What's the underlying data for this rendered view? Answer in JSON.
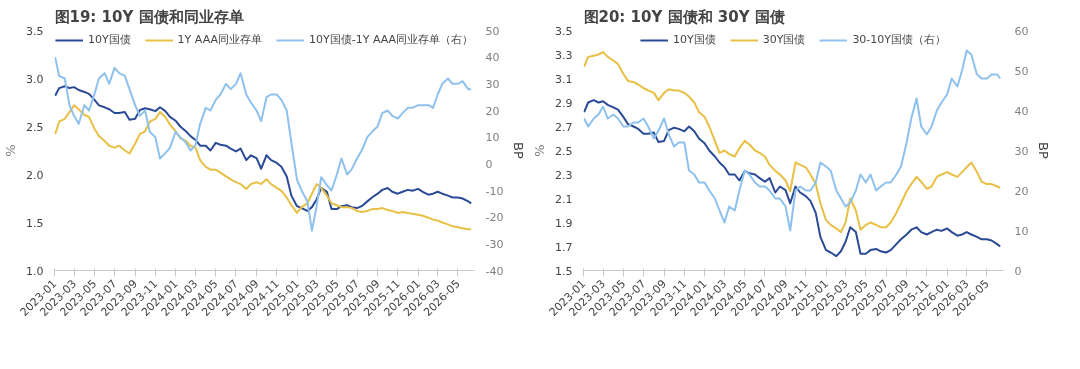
{
  "chart_data": [
    {
      "type": "line",
      "title": "图19: 10Y 国债和同业存单",
      "ylabel": "%",
      "y2label": "BP",
      "legend": "top",
      "grid": false,
      "x": [
        "2023-01-03",
        "2023-01-15",
        "2023-02-01",
        "2023-02-15",
        "2023-03-01",
        "2023-03-15",
        "2023-04-01",
        "2023-04-15",
        "2023-05-01",
        "2023-05-15",
        "2023-06-01",
        "2023-06-15",
        "2023-07-01",
        "2023-07-15",
        "2023-08-01",
        "2023-08-15",
        "2023-09-01",
        "2023-09-15",
        "2023-10-01",
        "2023-10-15",
        "2023-11-01",
        "2023-11-15",
        "2023-12-01",
        "2023-12-15",
        "2024-01-01",
        "2024-01-15",
        "2024-02-01",
        "2024-02-15",
        "2024-03-01",
        "2024-03-15",
        "2024-04-01",
        "2024-04-15",
        "2024-05-01",
        "2024-05-15",
        "2024-06-01",
        "2024-06-15",
        "2024-07-01",
        "2024-07-15",
        "2024-08-01",
        "2024-08-15",
        "2024-09-01",
        "2024-09-15",
        "2024-10-01",
        "2024-10-15",
        "2024-11-01",
        "2024-11-15",
        "2024-12-01",
        "2024-12-15",
        "2025-01-01",
        "2025-01-15",
        "2025-02-01",
        "2025-02-15",
        "2025-03-01",
        "2025-03-15",
        "2025-04-01",
        "2025-04-15",
        "2025-05-01",
        "2025-05-15",
        "2025-06-01",
        "2025-06-15",
        "2025-07-01",
        "2025-07-15",
        "2025-08-01",
        "2025-08-15",
        "2025-09-01",
        "2025-09-15",
        "2025-10-01",
        "2025-10-15",
        "2025-11-01",
        "2025-11-15",
        "2025-12-01",
        "2025-12-15",
        "2026-01-01",
        "2026-01-15",
        "2026-02-01",
        "2026-02-15",
        "2026-03-01",
        "2026-03-15",
        "2026-04-01",
        "2026-04-15",
        "2026-05-01",
        "2026-05-15",
        "2026-06-01",
        "2026-06-10"
      ],
      "xlim": [
        "2023-01-01",
        "2026-06-20"
      ],
      "xticks": [
        "2023-01",
        "2023-03",
        "2023-05",
        "2023-07",
        "2023-09",
        "2023-11",
        "2024-01",
        "2024-03",
        "2024-05",
        "2024-07",
        "2024-09",
        "2024-11",
        "2025-01",
        "2025-03",
        "2025-05",
        "2025-07",
        "2025-09",
        "2025-11",
        "2026-01",
        "2026-03",
        "2026-05"
      ],
      "ylim": [
        1.0,
        3.5
      ],
      "yticks": [
        {
          "value": 1.0,
          "label": "1.0"
        },
        1.5,
        {
          "value": 2.0,
          "label": "2.0"
        },
        2.5,
        {
          "value": 3.0,
          "label": "3.0"
        },
        3.5
      ],
      "y2lim": [
        -40,
        50
      ],
      "y2ticks": [
        -40,
        -30,
        -20,
        -10,
        0,
        10,
        20,
        30,
        40,
        50
      ],
      "series": [
        {
          "name": "10Y国债",
          "color": "#2b4a96",
          "values": [
            2.82,
            2.9,
            2.92,
            2.9,
            2.91,
            2.88,
            2.86,
            2.84,
            2.78,
            2.72,
            2.7,
            2.68,
            2.64,
            2.64,
            2.65,
            2.57,
            2.58,
            2.67,
            2.69,
            2.68,
            2.66,
            2.7,
            2.66,
            2.6,
            2.56,
            2.5,
            2.45,
            2.4,
            2.36,
            2.3,
            2.3,
            2.25,
            2.33,
            2.31,
            2.3,
            2.27,
            2.24,
            2.27,
            2.15,
            2.2,
            2.17,
            2.06,
            2.2,
            2.15,
            2.12,
            2.08,
            1.98,
            1.78,
            1.67,
            1.65,
            1.62,
            1.66,
            1.74,
            1.86,
            1.82,
            1.64,
            1.64,
            1.67,
            1.68,
            1.66,
            1.65,
            1.67,
            1.72,
            1.76,
            1.8,
            1.84,
            1.86,
            1.82,
            1.8,
            1.82,
            1.84,
            1.83,
            1.85,
            1.82,
            1.79,
            1.8,
            1.82,
            1.8,
            1.78,
            1.76,
            1.76,
            1.75,
            1.72,
            1.7
          ]
        },
        {
          "name": "1Y AAA同业存单",
          "color": "#e8c046",
          "values": [
            2.42,
            2.55,
            2.58,
            2.65,
            2.72,
            2.68,
            2.62,
            2.6,
            2.48,
            2.4,
            2.35,
            2.3,
            2.28,
            2.3,
            2.25,
            2.22,
            2.32,
            2.42,
            2.45,
            2.55,
            2.58,
            2.65,
            2.6,
            2.52,
            2.45,
            2.38,
            2.35,
            2.3,
            2.28,
            2.15,
            2.08,
            2.05,
            2.05,
            2.02,
            1.98,
            1.95,
            1.92,
            1.9,
            1.85,
            1.9,
            1.92,
            1.9,
            1.95,
            1.9,
            1.86,
            1.83,
            1.76,
            1.68,
            1.6,
            1.66,
            1.7,
            1.8,
            1.9,
            1.86,
            1.78,
            1.7,
            1.68,
            1.66,
            1.66,
            1.65,
            1.62,
            1.61,
            1.62,
            1.64,
            1.64,
            1.65,
            1.63,
            1.62,
            1.6,
            1.61,
            1.6,
            1.59,
            1.58,
            1.57,
            1.55,
            1.53,
            1.52,
            1.5,
            1.48,
            1.46,
            1.45,
            1.44,
            1.43,
            1.43
          ]
        },
        {
          "name": "10Y国债-1Y AAA同业存单（右）",
          "color": "#8fc1ee",
          "axis": "y2",
          "values": [
            40,
            33,
            32,
            22,
            18,
            15,
            22,
            20,
            26,
            32,
            34,
            30,
            36,
            34,
            33,
            28,
            22,
            18,
            20,
            12,
            10,
            2,
            4,
            6,
            12,
            10,
            8,
            5,
            7,
            15,
            21,
            20,
            24,
            26,
            30,
            28,
            30,
            34,
            26,
            23,
            20,
            16,
            25,
            26,
            26,
            24,
            20,
            8,
            -6,
            -10,
            -14,
            -25,
            -16,
            -5,
            -8,
            -10,
            -4,
            2,
            -4,
            -2,
            2,
            5,
            10,
            12,
            14,
            19,
            20,
            18,
            17,
            19,
            21,
            21,
            22,
            22,
            22,
            21,
            26,
            30,
            32,
            30,
            30,
            31,
            28,
            28
          ]
        }
      ]
    },
    {
      "type": "line",
      "title": "图20: 10Y 国债和 30Y 国债",
      "ylabel": "%",
      "y2label": "BP",
      "legend": "top",
      "grid": false,
      "x": [
        "2023-01-03",
        "2023-01-15",
        "2023-02-01",
        "2023-02-15",
        "2023-03-01",
        "2023-03-15",
        "2023-04-01",
        "2023-04-15",
        "2023-05-01",
        "2023-05-15",
        "2023-06-01",
        "2023-06-15",
        "2023-07-01",
        "2023-07-15",
        "2023-08-01",
        "2023-08-15",
        "2023-09-01",
        "2023-09-15",
        "2023-10-01",
        "2023-10-15",
        "2023-11-01",
        "2023-11-15",
        "2023-12-01",
        "2023-12-15",
        "2024-01-01",
        "2024-01-15",
        "2024-02-01",
        "2024-02-15",
        "2024-03-01",
        "2024-03-15",
        "2024-04-01",
        "2024-04-15",
        "2024-05-01",
        "2024-05-15",
        "2024-06-01",
        "2024-06-15",
        "2024-07-01",
        "2024-07-15",
        "2024-08-01",
        "2024-08-15",
        "2024-09-01",
        "2024-09-15",
        "2024-10-01",
        "2024-10-15",
        "2024-11-01",
        "2024-11-15",
        "2024-12-01",
        "2024-12-15",
        "2025-01-01",
        "2025-01-15",
        "2025-02-01",
        "2025-02-15",
        "2025-03-01",
        "2025-03-15",
        "2025-04-01",
        "2025-04-15",
        "2025-05-01",
        "2025-05-15",
        "2025-06-01",
        "2025-06-15",
        "2025-07-01",
        "2025-07-15",
        "2025-08-01",
        "2025-08-15",
        "2025-09-01",
        "2025-09-15",
        "2025-10-01",
        "2025-10-15",
        "2025-11-01",
        "2025-11-15",
        "2025-12-01",
        "2025-12-15",
        "2026-01-01",
        "2026-01-15",
        "2026-02-01",
        "2026-02-15",
        "2026-03-01",
        "2026-03-15",
        "2026-04-01",
        "2026-04-15",
        "2026-05-01",
        "2026-05-15",
        "2026-06-01",
        "2026-06-10"
      ],
      "xlim": [
        "2023-01-01",
        "2026-06-20"
      ],
      "xticks": [
        "2023-01",
        "2023-03",
        "2023-05",
        "2023-07",
        "2023-09",
        "2023-11",
        "2024-01",
        "2024-03",
        "2024-05",
        "2024-07",
        "2024-09",
        "2024-11",
        "2025-01",
        "2025-03",
        "2025-05",
        "2025-07",
        "2025-09",
        "2025-11",
        "2026-01",
        "2026-03",
        "2026-05"
      ],
      "ylim": [
        1.5,
        3.5
      ],
      "yticks": [
        1.5,
        1.7,
        1.9,
        2.1,
        2.3,
        2.5,
        2.7,
        2.9,
        3.1,
        3.3,
        3.5
      ],
      "y2lim": [
        0,
        60
      ],
      "y2ticks": [
        0,
        10,
        20,
        30,
        40,
        50,
        60
      ],
      "series": [
        {
          "name": "10Y国债",
          "color": "#2b4a96",
          "values": [
            2.82,
            2.9,
            2.92,
            2.9,
            2.91,
            2.88,
            2.86,
            2.84,
            2.78,
            2.72,
            2.7,
            2.68,
            2.64,
            2.64,
            2.65,
            2.57,
            2.58,
            2.67,
            2.69,
            2.68,
            2.66,
            2.7,
            2.66,
            2.6,
            2.56,
            2.5,
            2.45,
            2.4,
            2.36,
            2.3,
            2.3,
            2.25,
            2.33,
            2.31,
            2.3,
            2.27,
            2.24,
            2.27,
            2.15,
            2.2,
            2.17,
            2.06,
            2.2,
            2.15,
            2.12,
            2.08,
            1.98,
            1.78,
            1.67,
            1.65,
            1.62,
            1.66,
            1.74,
            1.86,
            1.82,
            1.64,
            1.64,
            1.67,
            1.68,
            1.66,
            1.65,
            1.67,
            1.72,
            1.76,
            1.8,
            1.84,
            1.86,
            1.82,
            1.8,
            1.82,
            1.84,
            1.83,
            1.85,
            1.82,
            1.79,
            1.8,
            1.82,
            1.8,
            1.78,
            1.76,
            1.76,
            1.75,
            1.72,
            1.7
          ]
        },
        {
          "name": "30Y国债",
          "color": "#e8c046",
          "values": [
            3.2,
            3.28,
            3.29,
            3.3,
            3.32,
            3.28,
            3.25,
            3.22,
            3.14,
            3.08,
            3.07,
            3.05,
            3.02,
            3.0,
            2.98,
            2.92,
            2.98,
            3.01,
            3.0,
            3.0,
            2.98,
            2.95,
            2.9,
            2.82,
            2.78,
            2.7,
            2.58,
            2.48,
            2.5,
            2.47,
            2.45,
            2.52,
            2.58,
            2.55,
            2.5,
            2.48,
            2.45,
            2.38,
            2.33,
            2.3,
            2.25,
            2.16,
            2.4,
            2.38,
            2.36,
            2.3,
            2.22,
            2.06,
            1.92,
            1.88,
            1.85,
            1.82,
            1.9,
            2.1,
            2.0,
            1.84,
            1.88,
            1.9,
            1.88,
            1.86,
            1.86,
            1.9,
            1.98,
            2.06,
            2.16,
            2.22,
            2.28,
            2.24,
            2.18,
            2.2,
            2.28,
            2.3,
            2.32,
            2.3,
            2.28,
            2.32,
            2.36,
            2.4,
            2.32,
            2.24,
            2.22,
            2.22,
            2.2,
            2.19
          ]
        },
        {
          "name": "30-10Y国债（右）",
          "color": "#8fc1ee",
          "axis": "y2",
          "values": [
            38,
            36,
            38,
            39,
            41,
            38,
            39,
            38,
            36,
            36,
            37,
            37,
            38,
            36,
            33,
            35,
            38,
            34,
            31,
            32,
            32,
            25,
            24,
            22,
            22,
            20,
            18,
            15,
            12,
            16,
            15,
            20,
            25,
            24,
            22,
            21,
            21,
            20,
            18,
            18,
            16,
            10,
            20,
            21,
            20,
            20,
            22,
            27,
            26,
            25,
            20,
            18,
            16,
            17,
            20,
            24,
            22,
            24,
            20,
            21,
            22,
            22,
            24,
            26,
            32,
            38,
            43,
            36,
            34,
            36,
            40,
            42,
            44,
            48,
            46,
            50,
            55,
            54,
            49,
            48,
            48,
            49,
            49,
            48
          ]
        }
      ]
    }
  ]
}
